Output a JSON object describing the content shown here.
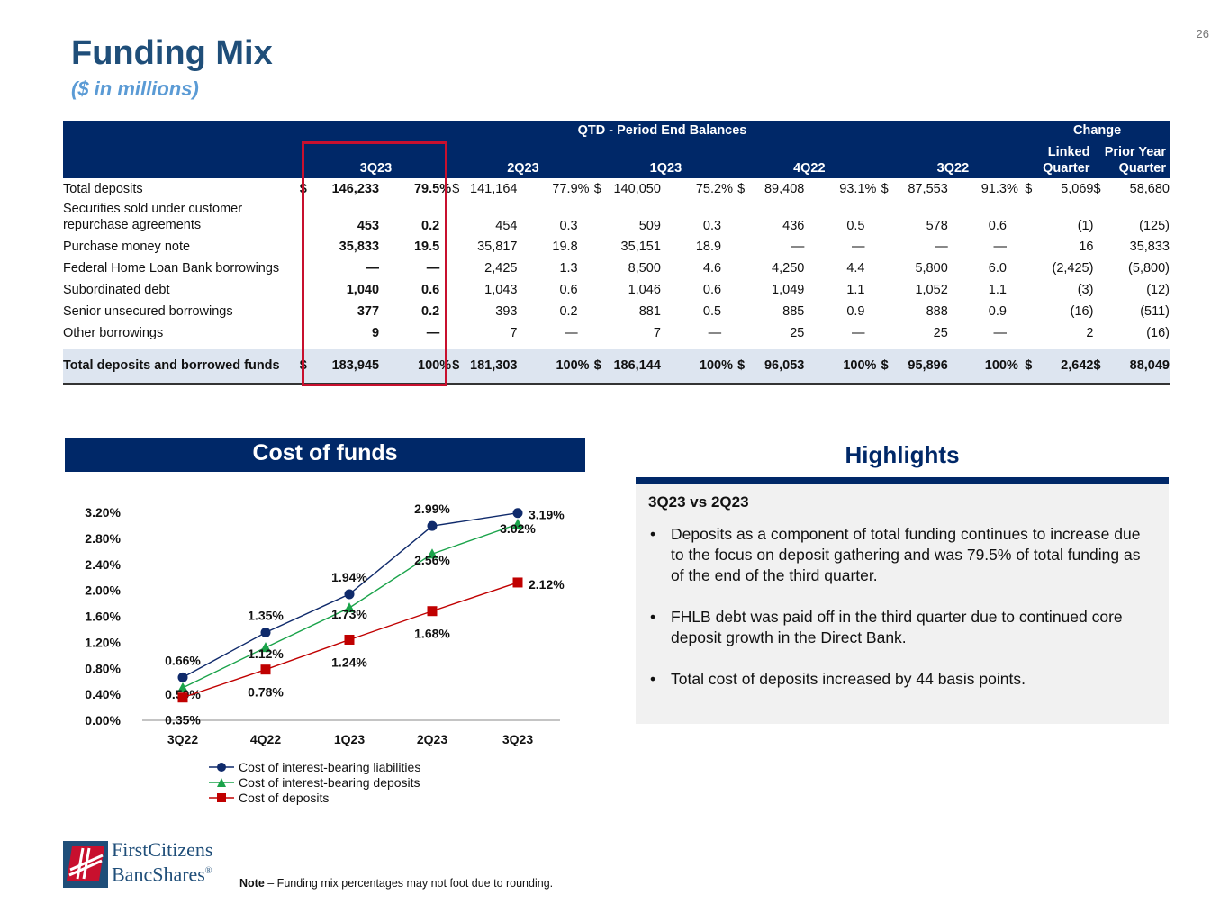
{
  "page_number": "26",
  "title": "Funding Mix",
  "subtitle": "($ in millions)",
  "table": {
    "group_headers": {
      "qtd": "QTD - Period End Balances",
      "change": "Change"
    },
    "columns": {
      "q1": "3Q23",
      "q2": "2Q23",
      "q3": "1Q23",
      "q4": "4Q22",
      "q5": "3Q22",
      "linked": [
        "Linked",
        "Quarter"
      ],
      "prior": [
        "Prior Year",
        "Quarter"
      ]
    },
    "rows": [
      {
        "label": "Total deposits",
        "dollar": "$",
        "v1": "146,233",
        "p1": "79.5",
        "s1": "%",
        "v2": "141,164",
        "p2": "77.9",
        "s2": "%",
        "v3": "140,050",
        "p3": "75.2",
        "s3": "%",
        "v4": "89,408",
        "p4": "93.1",
        "s4": "%",
        "v5": "87,553",
        "p5": "91.3",
        "s5": "%",
        "linked": "5,069",
        "prior": "58,680"
      },
      {
        "label": "Securities sold under customer repurchase agreements",
        "v1": "453",
        "p1": "0.2",
        "v2": "454",
        "p2": "0.3",
        "v3": "509",
        "p3": "0.3",
        "v4": "436",
        "p4": "0.5",
        "v5": "578",
        "p5": "0.6",
        "linked": "(1)",
        "prior": "(125)"
      },
      {
        "label": "Purchase money note",
        "v1": "35,833",
        "p1": "19.5",
        "v2": "35,817",
        "p2": "19.8",
        "v3": "35,151",
        "p3": "18.9",
        "v4": "—",
        "p4": "—",
        "v5": "—",
        "p5": "—",
        "linked": "16",
        "prior": "35,833"
      },
      {
        "label": "Federal Home Loan Bank borrowings",
        "v1": "—",
        "p1": "—",
        "v2": "2,425",
        "p2": "1.3",
        "v3": "8,500",
        "p3": "4.6",
        "v4": "4,250",
        "p4": "4.4",
        "v5": "5,800",
        "p5": "6.0",
        "linked": "(2,425)",
        "prior": "(5,800)"
      },
      {
        "label": "Subordinated debt",
        "v1": "1,040",
        "p1": "0.6",
        "v2": "1,043",
        "p2": "0.6",
        "v3": "1,046",
        "p3": "0.6",
        "v4": "1,049",
        "p4": "1.1",
        "v5": "1,052",
        "p5": "1.1",
        "linked": "(3)",
        "prior": "(12)"
      },
      {
        "label": "Senior unsecured borrowings",
        "v1": "377",
        "p1": "0.2",
        "v2": "393",
        "p2": "0.2",
        "v3": "881",
        "p3": "0.5",
        "v4": "885",
        "p4": "0.9",
        "v5": "888",
        "p5": "0.9",
        "linked": "(16)",
        "prior": "(511)"
      },
      {
        "label": "Other borrowings",
        "v1": "9",
        "p1": "—",
        "v2": "7",
        "p2": "—",
        "v3": "7",
        "p3": "—",
        "v4": "25",
        "p4": "—",
        "v5": "25",
        "p5": "—",
        "linked": "2",
        "prior": "(16)"
      }
    ],
    "total": {
      "label": "Total deposits and borrowed funds",
      "dollar": "$",
      "v1": "183,945",
      "p1": "100",
      "s1": "%",
      "v2": "181,303",
      "p2": "100",
      "s2": "%",
      "v3": "186,144",
      "p3": "100",
      "s3": "%",
      "v4": "96,053",
      "p4": "100",
      "s4": "%",
      "v5": "95,896",
      "p5": "100",
      "s5": "%",
      "linked": "2,642",
      "prior": "88,049"
    },
    "highlight_color": "#c8102e"
  },
  "chart_header": "Cost of funds",
  "chart_data": {
    "type": "line",
    "title": "Cost of funds",
    "categories": [
      "3Q22",
      "4Q22",
      "1Q23",
      "2Q23",
      "3Q23"
    ],
    "y_ticks": [
      "0.00%",
      "0.40%",
      "0.80%",
      "1.20%",
      "1.60%",
      "2.00%",
      "2.40%",
      "2.80%",
      "3.20%"
    ],
    "ylim": [
      0,
      3.2
    ],
    "grid": false,
    "legend_position": "bottom-left",
    "series": [
      {
        "name": "Cost of interest-bearing liabilities",
        "values": [
          0.66,
          1.35,
          1.94,
          2.99,
          3.19
        ],
        "labels": [
          "0.66%",
          "1.35%",
          "1.94%",
          "2.99%",
          "3.19%"
        ],
        "color": "#0f2a6b",
        "marker": "circle"
      },
      {
        "name": "Cost of interest-bearing deposits",
        "values": [
          0.5,
          1.12,
          1.73,
          2.56,
          3.02
        ],
        "labels": [
          "0.50%",
          "1.12%",
          "1.73%",
          "2.56%",
          "3.02%"
        ],
        "color": "#1aa34a",
        "marker": "triangle"
      },
      {
        "name": "Cost of deposits",
        "values": [
          0.35,
          0.78,
          1.24,
          1.68,
          2.12
        ],
        "labels": [
          "0.35%",
          "0.78%",
          "1.24%",
          "1.68%",
          "2.12%"
        ],
        "color": "#c00000",
        "marker": "square"
      }
    ]
  },
  "highlights": {
    "title": "Highlights",
    "subtitle": "3Q23 vs 2Q23",
    "bullets": [
      "Deposits as a component of total funding continues to increase due to the focus on deposit gathering and was 79.5% of total funding as of the end of the third quarter.",
      "FHLB debt was paid off in the third quarter due to continued core deposit growth in the Direct Bank.",
      "Total cost of deposits increased by 44 basis points."
    ]
  },
  "logo": {
    "line1": "FirstCitizens",
    "line2": "BancShares",
    "reg": "®",
    "colors": {
      "red": "#c8102e",
      "blue": "#1f4e79"
    }
  },
  "note": {
    "label": "Note",
    "text": " – Funding mix percentages may not foot due to rounding."
  }
}
